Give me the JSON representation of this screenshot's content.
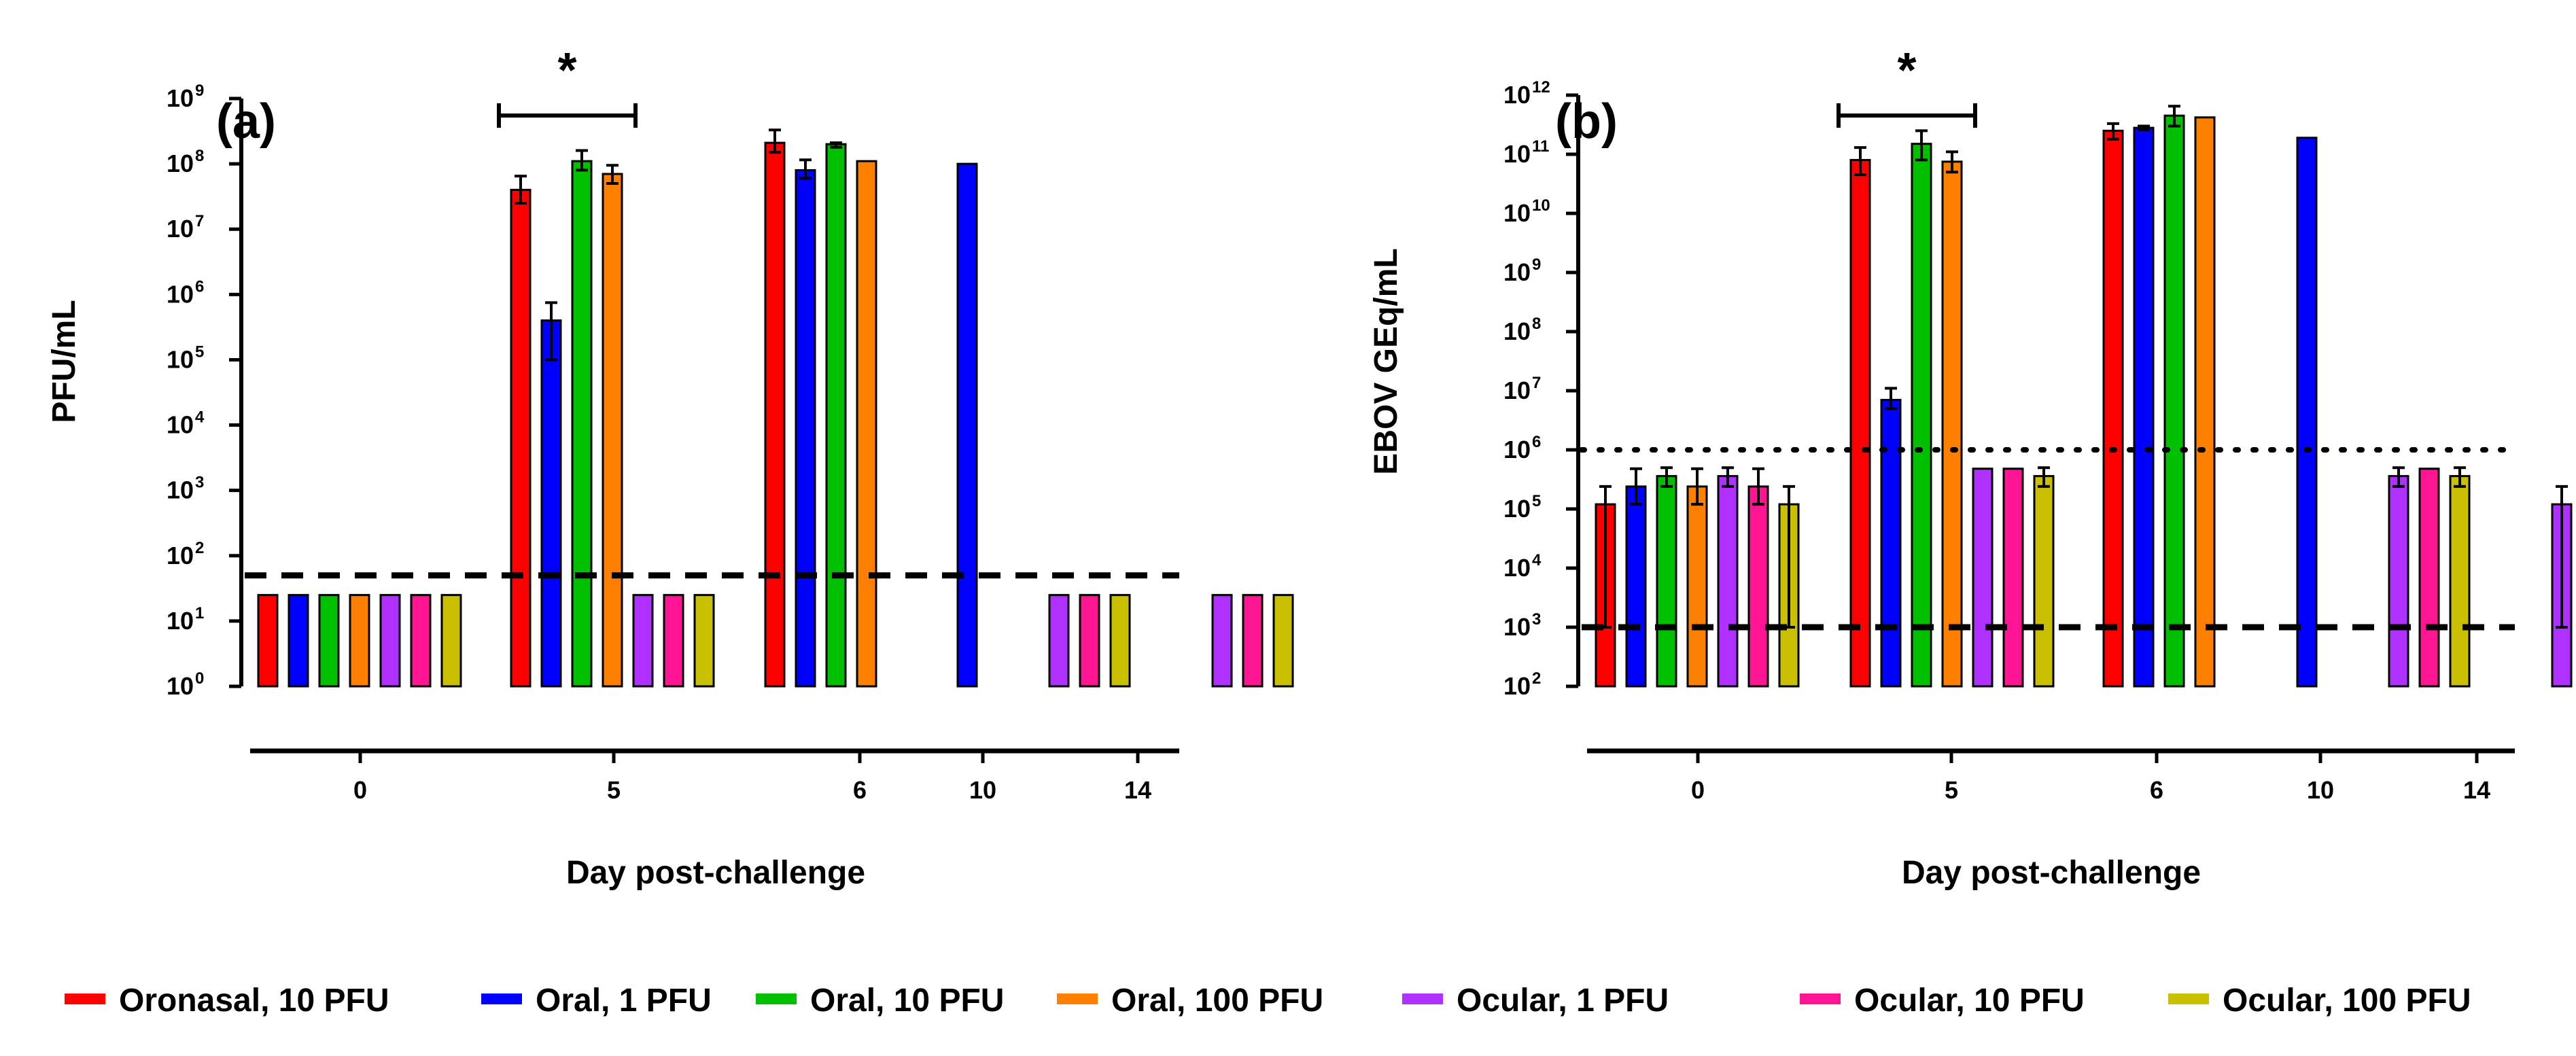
{
  "colors": {
    "oronasal-10": "#ff0000",
    "oral-1": "#0000ff",
    "oral-10": "#00c000",
    "oral-100": "#ff8000",
    "ocular-1": "#b030ff",
    "ocular-10": "#ff1493",
    "ocular-100": "#c8c000"
  },
  "legend": {
    "items": [
      {
        "key": "oronasal-10",
        "label": "Oronasal, 10 PFU"
      },
      {
        "key": "oral-1",
        "label": "Oral, 1 PFU"
      },
      {
        "key": "oral-10",
        "label": "Oral, 10 PFU"
      },
      {
        "key": "oral-100",
        "label": "Oral, 100 PFU"
      },
      {
        "key": "ocular-1",
        "label": "Ocular, 1 PFU"
      },
      {
        "key": "ocular-10",
        "label": "Ocular, 10 PFU"
      },
      {
        "key": "ocular-100",
        "label": "Ocular, 100 PFU"
      }
    ]
  },
  "chart_data": [
    {
      "panel_label": "(a)",
      "type": "bar",
      "scale": "log10",
      "ylabel": "PFU/mL",
      "xlabel": "Day post-challenge",
      "ylim_exponent": [
        0,
        9
      ],
      "y_tick_exponents": [
        "0",
        "1",
        "2",
        "3",
        "4",
        "5",
        "6",
        "7",
        "8",
        "9"
      ],
      "categories": [
        "0",
        "5",
        "6",
        "10",
        "14"
      ],
      "series_keys": [
        "oronasal-10",
        "oral-1",
        "oral-10",
        "oral-100",
        "ocular-1",
        "ocular-10",
        "ocular-100"
      ],
      "values": [
        [
          25,
          25,
          25,
          25,
          25,
          25,
          25
        ],
        [
          40000000,
          400000,
          110000000,
          70000000,
          25,
          25,
          25
        ],
        [
          210000000,
          80000000,
          200000000,
          110000000,
          null,
          null,
          null
        ],
        [
          null,
          100000000,
          null,
          null,
          25,
          25,
          25
        ],
        [
          null,
          null,
          null,
          null,
          25,
          25,
          25
        ]
      ],
      "error_low": [
        [
          null,
          null,
          null,
          null,
          null,
          null,
          null
        ],
        [
          25000000,
          100000,
          80000000,
          50000000,
          null,
          null,
          null
        ],
        [
          150000000,
          60000000,
          180000000,
          null,
          null,
          null,
          null
        ],
        [
          null,
          null,
          null,
          null,
          null,
          null,
          null
        ],
        [
          null,
          null,
          null,
          null,
          null,
          null,
          null
        ]
      ],
      "error_high": [
        [
          null,
          null,
          null,
          null,
          null,
          null,
          null
        ],
        [
          65000000,
          750000,
          160000000,
          95000000,
          null,
          null,
          null
        ],
        [
          330000000,
          115000000,
          210000000,
          null,
          null,
          null,
          null
        ],
        [
          null,
          null,
          null,
          null,
          null,
          null,
          null
        ],
        [
          null,
          null,
          null,
          null,
          null,
          null,
          null
        ]
      ],
      "reference_lines": [
        {
          "value": 50,
          "style": "dashed"
        }
      ],
      "significance": {
        "label": "*",
        "from_series": 0,
        "to_series": 3,
        "category": 1
      }
    },
    {
      "panel_label": "(b)",
      "type": "bar",
      "scale": "log10",
      "ylabel": "EBOV GEq/mL",
      "xlabel": "Day post-challenge",
      "ylim_exponent": [
        2,
        12
      ],
      "y_tick_exponents": [
        "2",
        "3",
        "4",
        "5",
        "6",
        "7",
        "8",
        "9",
        "10",
        "11",
        "12"
      ],
      "categories": [
        "0",
        "5",
        "6",
        "10",
        "14"
      ],
      "series_keys": [
        "oronasal-10",
        "oral-1",
        "oral-10",
        "oral-100",
        "ocular-1",
        "ocular-10",
        "ocular-100"
      ],
      "values": [
        [
          120000,
          240000,
          360000,
          240000,
          360000,
          240000,
          120000
        ],
        [
          80000000000,
          7000000,
          150000000000,
          75000000000,
          480000,
          480000,
          360000
        ],
        [
          250000000000,
          280000000000,
          450000000000,
          420000000000,
          null,
          null,
          null
        ],
        [
          null,
          190000000000,
          null,
          null,
          360000,
          480000,
          360000
        ],
        [
          null,
          null,
          null,
          null,
          120000,
          360000,
          240000
        ]
      ],
      "error_low": [
        [
          1000,
          120000,
          240000,
          120000,
          240000,
          120000,
          1000
        ],
        [
          45000000000,
          5000000,
          80000000000,
          50000000000,
          null,
          null,
          240000
        ],
        [
          180000000000,
          260000000000,
          300000000000,
          null,
          null,
          null,
          null
        ],
        [
          null,
          null,
          null,
          null,
          240000,
          null,
          240000
        ],
        [
          null,
          null,
          null,
          null,
          1000,
          240000,
          120000
        ]
      ],
      "error_high": [
        [
          240000,
          480000,
          500000,
          480000,
          500000,
          480000,
          240000
        ],
        [
          130000000000,
          11000000,
          250000000000,
          110000000000,
          null,
          null,
          500000
        ],
        [
          330000000000,
          300000000000,
          650000000000,
          null,
          null,
          null,
          null
        ],
        [
          null,
          null,
          null,
          null,
          500000,
          null,
          500000
        ],
        [
          null,
          null,
          null,
          null,
          240000,
          500000,
          480000
        ]
      ],
      "reference_lines": [
        {
          "value": 1000000,
          "style": "dotted"
        },
        {
          "value": 1000,
          "style": "dashed"
        }
      ],
      "significance": {
        "label": "*",
        "from_series": 0,
        "to_series": 3,
        "category": 1
      }
    }
  ]
}
